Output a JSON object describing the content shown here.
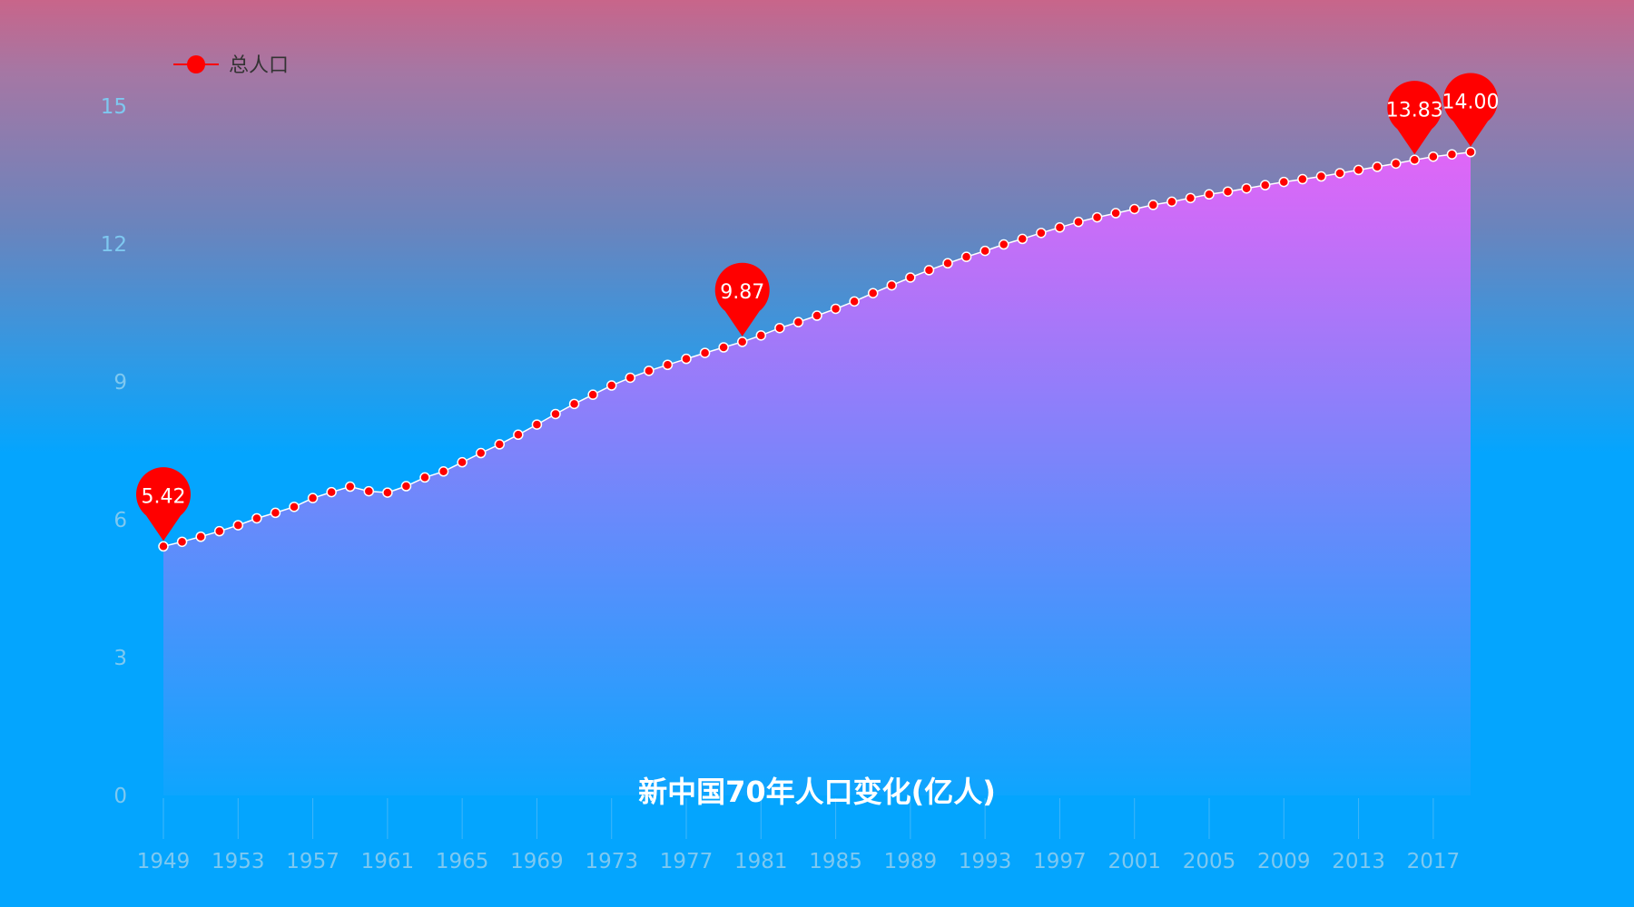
{
  "chart_data": {
    "type": "line",
    "title": "新中国70年人口变化(亿人)",
    "legend": {
      "name": "总人口",
      "position": "top-left"
    },
    "ylim": [
      0,
      15
    ],
    "yticks": [
      0,
      3,
      6,
      9,
      12,
      15
    ],
    "xticks": [
      "1949",
      "1953",
      "1957",
      "1961",
      "1965",
      "1969",
      "1973",
      "1977",
      "1981",
      "1985",
      "1989",
      "1993",
      "1997",
      "2001",
      "2005",
      "2009",
      "2013",
      "2017"
    ],
    "colors": {
      "line": "#ffffff",
      "marker": "#ff0000",
      "area_top": "#e066f7",
      "area_bottom": "#0ea5fe",
      "pin": "#ff0000"
    },
    "grid": false,
    "series": [
      {
        "name": "总人口",
        "x": [
          1949,
          1950,
          1951,
          1952,
          1953,
          1954,
          1955,
          1956,
          1957,
          1958,
          1959,
          1960,
          1961,
          1962,
          1963,
          1964,
          1965,
          1966,
          1967,
          1968,
          1969,
          1970,
          1971,
          1972,
          1973,
          1974,
          1975,
          1976,
          1977,
          1978,
          1979,
          1980,
          1981,
          1982,
          1983,
          1984,
          1985,
          1986,
          1987,
          1988,
          1989,
          1990,
          1991,
          1992,
          1993,
          1994,
          1995,
          1996,
          1997,
          1998,
          1999,
          2000,
          2001,
          2002,
          2003,
          2004,
          2005,
          2006,
          2007,
          2008,
          2009,
          2010,
          2011,
          2012,
          2013,
          2014,
          2015,
          2016,
          2017,
          2018,
          2019
        ],
        "values": [
          5.42,
          5.52,
          5.63,
          5.75,
          5.88,
          6.03,
          6.15,
          6.28,
          6.47,
          6.6,
          6.72,
          6.62,
          6.59,
          6.73,
          6.92,
          7.05,
          7.25,
          7.45,
          7.64,
          7.85,
          8.07,
          8.3,
          8.52,
          8.72,
          8.92,
          9.09,
          9.24,
          9.37,
          9.5,
          9.63,
          9.75,
          9.87,
          10.01,
          10.17,
          10.3,
          10.44,
          10.59,
          10.75,
          10.93,
          11.1,
          11.27,
          11.43,
          11.58,
          11.72,
          11.85,
          11.99,
          12.11,
          12.24,
          12.36,
          12.48,
          12.58,
          12.67,
          12.76,
          12.85,
          12.92,
          13.0,
          13.08,
          13.14,
          13.21,
          13.28,
          13.35,
          13.41,
          13.47,
          13.54,
          13.61,
          13.68,
          13.75,
          13.83,
          13.9,
          13.95,
          14.0
        ]
      }
    ],
    "pins": [
      {
        "x": 1949,
        "value": 5.42,
        "label": "5.42"
      },
      {
        "x": 1980,
        "value": 9.87,
        "label": "9.87"
      },
      {
        "x": 2016,
        "value": 13.83,
        "label": "13.83"
      },
      {
        "x": 2019,
        "value": 14.0,
        "label": "14.00"
      }
    ]
  }
}
